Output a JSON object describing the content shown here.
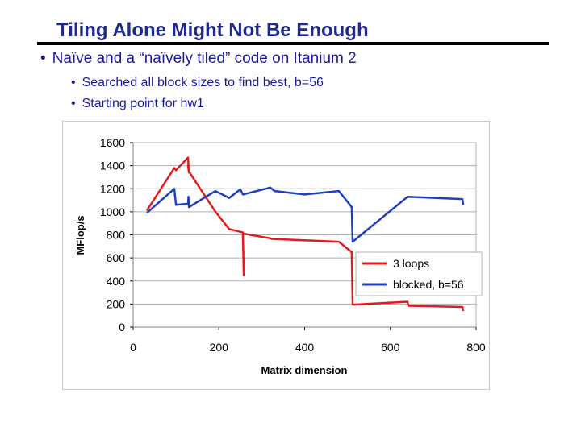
{
  "slide": {
    "title": "Tiling Alone Might Not Be Enough",
    "bullet": "Naïve and a “naïvely tiled” code on Itanium 2",
    "sub_bullets": [
      "Searched all block sizes to find best, b=56",
      "Starting point for hw1"
    ],
    "bullet_glyph": "•"
  },
  "chart_data": {
    "type": "line",
    "title": "",
    "xlabel": "Matrix dimension",
    "ylabel": "MFlop/s",
    "xlim": [
      0,
      800
    ],
    "ylim": [
      0,
      1600
    ],
    "xticks": [
      0,
      200,
      400,
      600,
      800
    ],
    "yticks": [
      0,
      200,
      400,
      600,
      800,
      1000,
      1200,
      1400,
      1600
    ],
    "grid": "horizontal",
    "legend_position": "right",
    "series": [
      {
        "name": "3 loops",
        "color": "#e41a1c",
        "x": [
          32,
          96,
          100,
          128,
          130,
          128,
          130,
          192,
          224,
          256,
          258,
          256,
          258,
          320,
          322,
          480,
          510,
          512,
          514,
          640,
          642,
          768,
          770
        ],
        "y": [
          1010,
          1380,
          1360,
          1470,
          1340,
          1400,
          1350,
          1000,
          850,
          820,
          450,
          800,
          810,
          770,
          765,
          740,
          650,
          200,
          195,
          220,
          185,
          175,
          140
        ]
      },
      {
        "name": "blocked, b=56",
        "color": "#1f3fbf",
        "x": [
          32,
          96,
          100,
          128,
          129,
          130,
          192,
          224,
          250,
          256,
          320,
          330,
          400,
          480,
          510,
          512,
          640,
          768,
          770
        ],
        "y": [
          990,
          1200,
          1060,
          1070,
          1130,
          1040,
          1180,
          1120,
          1195,
          1150,
          1210,
          1180,
          1150,
          1180,
          1040,
          740,
          1130,
          1110,
          1060
        ]
      }
    ]
  }
}
